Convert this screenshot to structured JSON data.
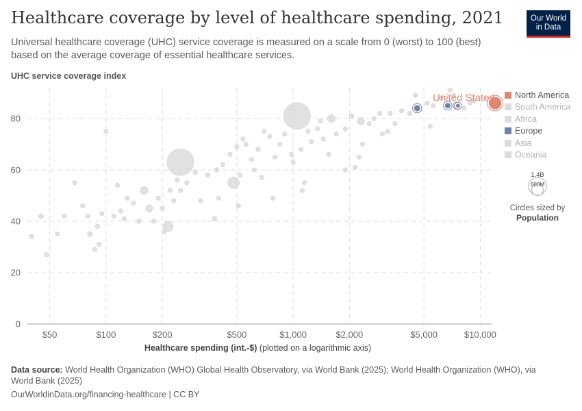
{
  "header": {
    "title": "Healthcare coverage by level of healthcare spending, 2021",
    "subtitle": "Universal healthcare coverage (UHC) service coverage is measured on a scale from 0 (worst) to 100 (best) based on the average coverage of essential healthcare services.",
    "logo_line1": "Our World",
    "logo_line2": "in Data"
  },
  "colors": {
    "north_america": "#e18674",
    "europe": "#6e82a8",
    "inactive": "#dcdcdc",
    "grid": "#dddddd"
  },
  "chart_data": {
    "type": "scatter",
    "title": "Healthcare coverage by level of healthcare spending, 2021",
    "ylabel": "UHC service coverage index",
    "xlabel": "Healthcare spending (int.-$)",
    "xlabel_note": "(plotted on a logarithmic axis)",
    "x_scale": "log",
    "xlim": [
      38,
      11500
    ],
    "ylim": [
      0,
      92
    ],
    "x_ticks": [
      50,
      100,
      200,
      500,
      1000,
      2000,
      5000,
      10000
    ],
    "x_tick_labels": [
      "$50",
      "$100",
      "$200",
      "$500",
      "$1,000",
      "$2,000",
      "$5,000",
      "$10,000"
    ],
    "y_ticks": [
      0,
      20,
      40,
      60,
      80
    ],
    "y_tick_labels": [
      "0",
      "20",
      "40",
      "60",
      "80"
    ],
    "grid": true,
    "legend_position": "right",
    "legend": [
      {
        "label": "North America",
        "active": true,
        "color_key": "north_america"
      },
      {
        "label": "South America",
        "active": false,
        "color_key": "inactive"
      },
      {
        "label": "Africa",
        "active": false,
        "color_key": "inactive"
      },
      {
        "label": "Europe",
        "active": true,
        "color_key": "europe"
      },
      {
        "label": "Asia",
        "active": false,
        "color_key": "inactive"
      },
      {
        "label": "Oceania",
        "active": false,
        "color_key": "inactive"
      }
    ],
    "annotations": [
      {
        "label": "United States",
        "x": 12000,
        "y": 86
      }
    ],
    "highlighted_points": [
      {
        "x": 12000,
        "y": 86,
        "pop": 0.33,
        "group": "north_america"
      },
      {
        "x": 7500,
        "y": 85,
        "pop": 0.04,
        "group": "north_america"
      },
      {
        "x": 4600,
        "y": 84,
        "pop": 0.084,
        "group": "europe"
      },
      {
        "x": 6700,
        "y": 85,
        "pop": 0.067,
        "group": "europe"
      },
      {
        "x": 7600,
        "y": 85,
        "pop": 0.01,
        "group": "europe"
      }
    ],
    "background_points": [
      {
        "x": 1050,
        "y": 81,
        "pop": 1.41
      },
      {
        "x": 250,
        "y": 63,
        "pop": 1.41
      },
      {
        "x": 480,
        "y": 55,
        "pop": 0.27
      },
      {
        "x": 215,
        "y": 38,
        "pop": 0.2
      },
      {
        "x": 170,
        "y": 45,
        "pop": 0.1
      },
      {
        "x": 160,
        "y": 52,
        "pop": 0.12
      },
      {
        "x": 82,
        "y": 35,
        "pop": 0.05
      },
      {
        "x": 45,
        "y": 42,
        "pop": 0.05
      },
      {
        "x": 1600,
        "y": 80,
        "pop": 0.12
      },
      {
        "x": 2300,
        "y": 79,
        "pop": 0.1
      },
      {
        "x": 1350,
        "y": 76,
        "pop": 0.04
      },
      {
        "x": 1200,
        "y": 75,
        "pop": 0.04
      },
      {
        "x": 560,
        "y": 70,
        "pop": 0.03
      },
      {
        "x": 500,
        "y": 69,
        "pop": 0.02
      },
      {
        "x": 520,
        "y": 58,
        "pop": 0.04
      },
      {
        "x": 250,
        "y": 52,
        "pop": 0.02
      },
      {
        "x": 150,
        "y": 40,
        "pop": 0.01
      },
      {
        "x": 95,
        "y": 43,
        "pop": 0.01
      },
      {
        "x": 120,
        "y": 44,
        "pop": 0.01
      },
      {
        "x": 900,
        "y": 74,
        "pop": 0.02
      },
      {
        "x": 5200,
        "y": 86,
        "pop": 0.02
      },
      {
        "x": 3800,
        "y": 83,
        "pop": 0.005
      },
      {
        "x": 4500,
        "y": 89,
        "pop": 0.005
      },
      {
        "x": 6900,
        "y": 91,
        "pop": 0.003
      },
      {
        "x": 8200,
        "y": 84,
        "pop": 0.005
      },
      {
        "x": 8800,
        "y": 86,
        "pop": 0.005
      },
      {
        "x": 5600,
        "y": 85,
        "pop": 0.01
      },
      {
        "x": 3300,
        "y": 82,
        "pop": 0.005
      },
      {
        "x": 2900,
        "y": 82,
        "pop": 0.005
      },
      {
        "x": 2700,
        "y": 80,
        "pop": 0.005
      },
      {
        "x": 2550,
        "y": 78,
        "pop": 0.005
      },
      {
        "x": 2050,
        "y": 81,
        "pop": 0.005
      },
      {
        "x": 1900,
        "y": 76,
        "pop": 0.005
      },
      {
        "x": 1700,
        "y": 74,
        "pop": 0.005
      },
      {
        "x": 1450,
        "y": 72,
        "pop": 0.005
      },
      {
        "x": 1250,
        "y": 71,
        "pop": 0.005
      },
      {
        "x": 1100,
        "y": 68,
        "pop": 0.005
      },
      {
        "x": 980,
        "y": 66,
        "pop": 0.005
      },
      {
        "x": 850,
        "y": 70,
        "pop": 0.005
      },
      {
        "x": 800,
        "y": 65,
        "pop": 0.005
      },
      {
        "x": 750,
        "y": 73,
        "pop": 0.005
      },
      {
        "x": 700,
        "y": 75,
        "pop": 0.005
      },
      {
        "x": 650,
        "y": 68,
        "pop": 0.005
      },
      {
        "x": 600,
        "y": 64,
        "pop": 0.005
      },
      {
        "x": 620,
        "y": 60,
        "pop": 0.005
      },
      {
        "x": 540,
        "y": 72,
        "pop": 0.005
      },
      {
        "x": 460,
        "y": 66,
        "pop": 0.005
      },
      {
        "x": 420,
        "y": 62,
        "pop": 0.005
      },
      {
        "x": 390,
        "y": 60,
        "pop": 0.005
      },
      {
        "x": 350,
        "y": 58,
        "pop": 0.005
      },
      {
        "x": 300,
        "y": 59,
        "pop": 0.005
      },
      {
        "x": 320,
        "y": 48,
        "pop": 0.005
      },
      {
        "x": 270,
        "y": 55,
        "pop": 0.005
      },
      {
        "x": 230,
        "y": 48,
        "pop": 0.005
      },
      {
        "x": 200,
        "y": 45,
        "pop": 0.005
      },
      {
        "x": 190,
        "y": 49,
        "pop": 0.005
      },
      {
        "x": 180,
        "y": 40,
        "pop": 0.005
      },
      {
        "x": 140,
        "y": 47,
        "pop": 0.005
      },
      {
        "x": 130,
        "y": 49,
        "pop": 0.005
      },
      {
        "x": 115,
        "y": 54,
        "pop": 0.005
      },
      {
        "x": 110,
        "y": 42,
        "pop": 0.005
      },
      {
        "x": 100,
        "y": 75,
        "pop": 0.005
      },
      {
        "x": 90,
        "y": 38,
        "pop": 0.005
      },
      {
        "x": 92,
        "y": 31,
        "pop": 0.005
      },
      {
        "x": 87,
        "y": 29,
        "pop": 0.005
      },
      {
        "x": 75,
        "y": 46,
        "pop": 0.005
      },
      {
        "x": 80,
        "y": 42,
        "pop": 0.005
      },
      {
        "x": 68,
        "y": 55,
        "pop": 0.005
      },
      {
        "x": 55,
        "y": 35,
        "pop": 0.005
      },
      {
        "x": 48,
        "y": 27,
        "pop": 0.005
      },
      {
        "x": 40,
        "y": 34,
        "pop": 0.005
      },
      {
        "x": 60,
        "y": 42,
        "pop": 0.005
      },
      {
        "x": 380,
        "y": 41,
        "pop": 0.005
      },
      {
        "x": 400,
        "y": 49,
        "pop": 0.005
      },
      {
        "x": 780,
        "y": 49,
        "pop": 0.005
      },
      {
        "x": 1150,
        "y": 55,
        "pop": 0.005
      },
      {
        "x": 1120,
        "y": 52,
        "pop": 0.005
      },
      {
        "x": 1900,
        "y": 60,
        "pop": 0.005
      },
      {
        "x": 2250,
        "y": 65,
        "pop": 0.005
      },
      {
        "x": 2350,
        "y": 70,
        "pop": 0.005
      },
      {
        "x": 2150,
        "y": 61,
        "pop": 0.005
      },
      {
        "x": 3000,
        "y": 74,
        "pop": 0.005
      },
      {
        "x": 3200,
        "y": 75,
        "pop": 0.005
      },
      {
        "x": 3500,
        "y": 78,
        "pop": 0.005
      },
      {
        "x": 4200,
        "y": 82,
        "pop": 0.005
      },
      {
        "x": 5400,
        "y": 77,
        "pop": 0.005
      },
      {
        "x": 6200,
        "y": 88,
        "pop": 0.005
      },
      {
        "x": 7200,
        "y": 89,
        "pop": 0.005
      },
      {
        "x": 9200,
        "y": 87,
        "pop": 0.005
      },
      {
        "x": 1400,
        "y": 79,
        "pop": 0.005
      },
      {
        "x": 1550,
        "y": 66,
        "pop": 0.005
      },
      {
        "x": 1000,
        "y": 63,
        "pop": 0.005
      },
      {
        "x": 680,
        "y": 57,
        "pop": 0.005
      },
      {
        "x": 510,
        "y": 46,
        "pop": 0.005
      },
      {
        "x": 240,
        "y": 56,
        "pop": 0.005
      },
      {
        "x": 220,
        "y": 52,
        "pop": 0.005
      },
      {
        "x": 205,
        "y": 36,
        "pop": 0.005
      },
      {
        "x": 125,
        "y": 41,
        "pop": 0.005
      }
    ]
  },
  "size_legend": {
    "big_label": "1.4B",
    "small_label": "600M",
    "big_value": 1400000000,
    "small_value": 600000000,
    "caption_line1": "Circles sized by",
    "caption_line2": "Population"
  },
  "footer": {
    "source_label": "Data source:",
    "source_text": "World Health Organization (WHO) Global Health Observatory, via World Bank (2025); World Health Organization (WHO), via World Bank (2025)",
    "link_text": "OurWorldinData.org/financing-healthcare | CC BY"
  }
}
